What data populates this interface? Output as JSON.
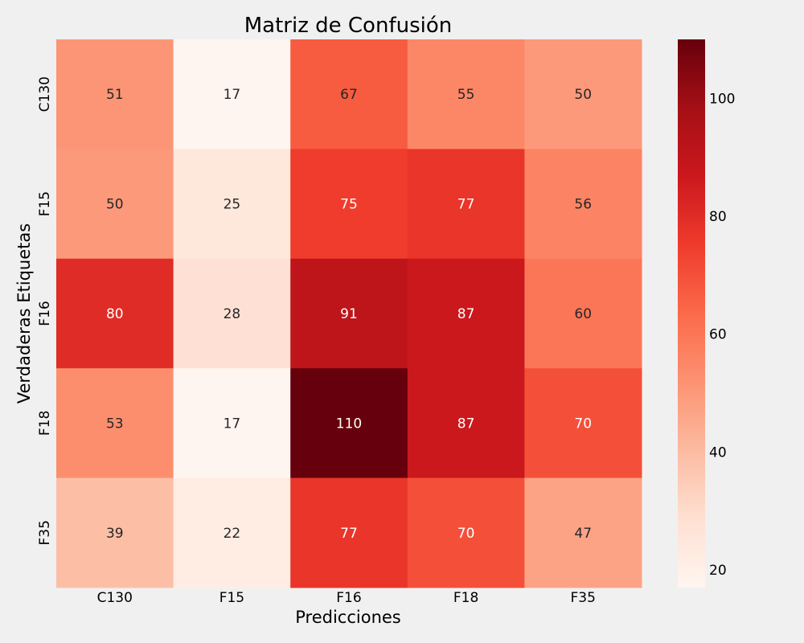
{
  "chart_data": {
    "type": "heatmap",
    "title": "Matriz de Confusión",
    "xlabel": "Predicciones",
    "ylabel": "Verdaderas Etiquetas",
    "x_categories": [
      "C130",
      "F15",
      "F16",
      "F18",
      "F35"
    ],
    "y_categories": [
      "C130",
      "F15",
      "F16",
      "F18",
      "F35"
    ],
    "values": [
      [
        51,
        17,
        67,
        55,
        50
      ],
      [
        50,
        25,
        75,
        77,
        56
      ],
      [
        80,
        28,
        91,
        87,
        60
      ],
      [
        53,
        17,
        110,
        87,
        70
      ],
      [
        39,
        22,
        77,
        70,
        47
      ]
    ],
    "colorbar": {
      "range": [
        17,
        110
      ],
      "ticks": [
        20,
        40,
        60,
        80,
        100
      ],
      "colormap": "Reds"
    },
    "grid": false
  }
}
